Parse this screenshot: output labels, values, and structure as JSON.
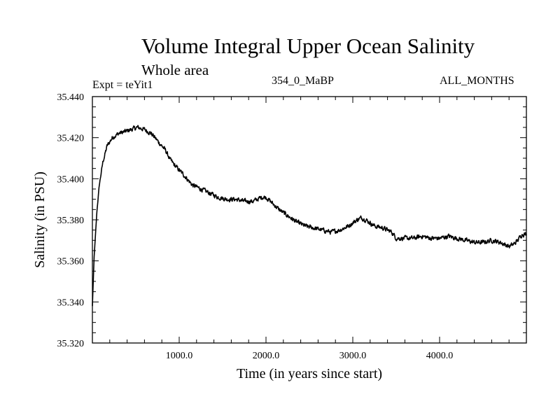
{
  "chart_data": {
    "type": "line",
    "title": "Volume Integral Upper Ocean Salinity",
    "subtitle": "Whole area",
    "annotations": {
      "left": "Expt = teYit1",
      "center": "354_0_MaBP",
      "right": "ALL_MONTHS"
    },
    "xlabel": "Time (in years since start)",
    "ylabel": "Salinity (in PSU)",
    "xlim": [
      0,
      5000
    ],
    "ylim": [
      35.32,
      35.44
    ],
    "x_ticks": [
      1000,
      2000,
      3000,
      4000
    ],
    "x_tick_labels": [
      "1000.0",
      "2000.0",
      "3000.0",
      "4000.0"
    ],
    "y_ticks": [
      35.32,
      35.34,
      35.36,
      35.38,
      35.4,
      35.42,
      35.44
    ],
    "y_tick_labels": [
      "35.320",
      "35.340",
      "35.360",
      "35.380",
      "35.400",
      "35.420",
      "35.440"
    ],
    "series": [
      {
        "name": "salinity",
        "color": "#000000",
        "x": [
          0,
          20,
          50,
          80,
          120,
          170,
          230,
          300,
          380,
          450,
          520,
          600,
          680,
          760,
          840,
          900,
          960,
          1050,
          1150,
          1250,
          1350,
          1450,
          1550,
          1650,
          1750,
          1850,
          1950,
          2000,
          2050,
          2150,
          2250,
          2350,
          2450,
          2550,
          2650,
          2750,
          2850,
          2950,
          3050,
          3100,
          3150,
          3250,
          3350,
          3450,
          3500,
          3600,
          3700,
          3800,
          3900,
          4000,
          4100,
          4200,
          4300,
          4400,
          4500,
          4600,
          4700,
          4750,
          4800,
          4850,
          4900,
          4950,
          5000
        ],
        "values": [
          35.338,
          35.362,
          35.383,
          35.397,
          35.408,
          35.416,
          35.42,
          35.422,
          35.423,
          35.424,
          35.425,
          35.424,
          35.422,
          35.418,
          35.414,
          35.409,
          35.406,
          35.402,
          35.397,
          35.395,
          35.393,
          35.391,
          35.39,
          35.39,
          35.389,
          35.389,
          35.391,
          35.391,
          35.389,
          35.385,
          35.382,
          35.379,
          35.377,
          35.376,
          35.375,
          35.374,
          35.375,
          35.377,
          35.38,
          35.381,
          35.38,
          35.377,
          35.376,
          35.374,
          35.371,
          35.371,
          35.371,
          35.372,
          35.371,
          35.371,
          35.372,
          35.371,
          35.37,
          35.369,
          35.369,
          35.37,
          35.369,
          35.368,
          35.367,
          35.368,
          35.37,
          35.373,
          35.373
        ]
      }
    ],
    "noise_amplitude": 0.0017
  }
}
